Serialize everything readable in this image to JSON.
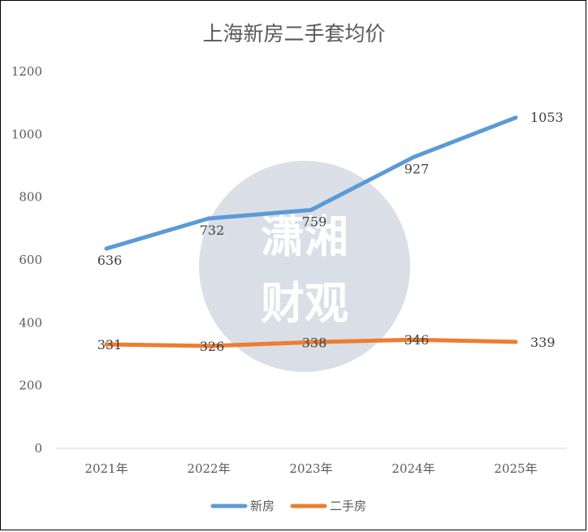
{
  "chart_data": {
    "type": "line",
    "title": "上海新房二手套均价",
    "categories": [
      "2021年",
      "2022年",
      "2023年",
      "2024年",
      "2025年"
    ],
    "ylim": [
      0,
      1200
    ],
    "yticks": [
      0,
      200,
      400,
      600,
      800,
      1000,
      1200
    ],
    "grid": false,
    "legend_position": "bottom",
    "series": [
      {
        "name": "新房",
        "values": [
          636,
          732,
          759,
          927,
          1053
        ],
        "color": "#5B9BD5"
      },
      {
        "name": "二手房",
        "values": [
          331,
          326,
          338,
          346,
          339
        ],
        "color": "#ED7D31"
      }
    ]
  },
  "watermark": {
    "text_top": "潇湘",
    "text_bottom": "财观",
    "circle_color": "#D6DCE5"
  }
}
